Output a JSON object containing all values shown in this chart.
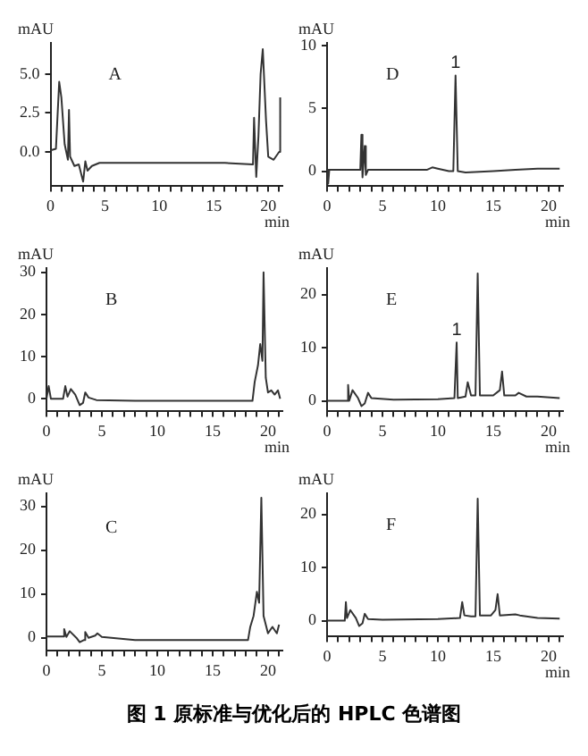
{
  "chart_data": [
    {
      "type": "line",
      "title": "图 1  原标准与优化后的 HPLC 色谱图",
      "ylabel": "mAU",
      "xlabel": "min",
      "annotations": [
        "A"
      ],
      "xlim": [
        0,
        21.3
      ],
      "ylim": [
        -2.2,
        7
      ],
      "yticks": [
        {
          "value": 0,
          "label": "0.0"
        },
        {
          "value": 2.5,
          "label": "2.5"
        },
        {
          "value": 5,
          "label": "5.0"
        }
      ],
      "xticks": [
        0,
        {
          "value": 1,
          "label": null
        },
        {
          "value": 2,
          "label": null
        },
        {
          "value": 3,
          "label": null
        },
        {
          "value": 4,
          "label": null
        },
        5,
        {
          "value": 6,
          "label": null
        },
        {
          "value": 7,
          "label": null
        },
        {
          "value": 8,
          "label": null
        },
        {
          "value": 9,
          "label": null
        },
        10,
        {
          "value": 11,
          "label": null
        },
        {
          "value": 12,
          "label": null
        },
        {
          "value": 13,
          "label": null
        },
        {
          "value": 14,
          "label": null
        },
        15,
        {
          "value": 16,
          "label": null
        },
        {
          "value": 17,
          "label": null
        },
        {
          "value": 18,
          "label": null
        },
        {
          "value": 19,
          "label": null
        },
        20,
        {
          "value": 21,
          "label": null
        }
      ],
      "x": [
        0,
        0.5,
        0.8,
        1.0,
        1.3,
        1.6,
        1.7,
        1.8,
        2.2,
        2.6,
        3.0,
        3.2,
        3.4,
        3.8,
        4.5,
        8,
        12,
        16,
        18.6,
        18.7,
        18.9,
        19.1,
        19.3,
        19.5,
        19.8,
        20.0,
        20.5,
        21,
        21.1
      ],
      "series": [
        {
          "color": "#333333",
          "values": [
            0.1,
            0.2,
            4.5,
            3.5,
            0.5,
            -0.5,
            2.7,
            -0.3,
            -0.9,
            -0.8,
            -1.9,
            -0.6,
            -1.2,
            -0.9,
            -0.7,
            -0.7,
            -0.7,
            -0.7,
            -0.8,
            2.2,
            -1.6,
            1.0,
            5.0,
            6.6,
            2.0,
            -0.3,
            -0.5,
            0,
            3.5
          ]
        }
      ]
    },
    {
      "type": "line",
      "ylabel": "mAU",
      "xlabel": "min",
      "annotations": [
        "D",
        {
          "text": "1",
          "x": 11.6,
          "y": 7.6
        }
      ],
      "xlim": [
        0,
        21.3
      ],
      "ylim": [
        -1.2,
        10.2
      ],
      "yticks": [
        0,
        5,
        10
      ],
      "xticks": [
        0,
        {
          "value": 1,
          "label": null
        },
        {
          "value": 2,
          "label": null
        },
        {
          "value": 3,
          "label": null
        },
        {
          "value": 4,
          "label": null
        },
        5,
        {
          "value": 6,
          "label": null
        },
        {
          "value": 7,
          "label": null
        },
        {
          "value": 8,
          "label": null
        },
        {
          "value": 9,
          "label": null
        },
        10,
        {
          "value": 11,
          "label": null
        },
        {
          "value": 12,
          "label": null
        },
        {
          "value": 13,
          "label": null
        },
        {
          "value": 14,
          "label": null
        },
        15,
        {
          "value": 16,
          "label": null
        },
        {
          "value": 17,
          "label": null
        },
        {
          "value": 18,
          "label": null
        },
        {
          "value": 19,
          "label": null
        },
        20,
        {
          "value": 21,
          "label": null
        }
      ],
      "x": [
        0,
        0.1,
        0.2,
        3,
        3.1,
        3.2,
        3.4,
        3.5,
        3.7,
        9,
        9.5,
        10,
        11,
        11.4,
        11.6,
        11.8,
        12.5,
        15,
        17,
        19,
        21
      ],
      "series": [
        {
          "color": "#333333",
          "values": [
            0.1,
            -1.0,
            0.1,
            0.1,
            2.9,
            -0.5,
            2.0,
            -0.3,
            0.1,
            0.1,
            0.3,
            0.2,
            0,
            0,
            7.6,
            0,
            -0.1,
            0,
            0.1,
            0.2,
            0.2
          ]
        }
      ]
    },
    {
      "type": "line",
      "ylabel": "mAU",
      "xlabel": "min",
      "annotations": [
        "B"
      ],
      "xlim": [
        0,
        21.3
      ],
      "ylim": [
        -3,
        31
      ],
      "yticks": [
        0,
        10,
        20,
        30
      ],
      "xticks": [
        0,
        {
          "value": 1,
          "label": null
        },
        {
          "value": 2,
          "label": null
        },
        {
          "value": 3,
          "label": null
        },
        {
          "value": 4,
          "label": null
        },
        5,
        {
          "value": 6,
          "label": null
        },
        {
          "value": 7,
          "label": null
        },
        {
          "value": 8,
          "label": null
        },
        {
          "value": 9,
          "label": null
        },
        10,
        {
          "value": 11,
          "label": null
        },
        {
          "value": 12,
          "label": null
        },
        {
          "value": 13,
          "label": null
        },
        {
          "value": 14,
          "label": null
        },
        15,
        {
          "value": 16,
          "label": null
        },
        {
          "value": 17,
          "label": null
        },
        {
          "value": 18,
          "label": null
        },
        {
          "value": 19,
          "label": null
        },
        20,
        {
          "value": 21,
          "label": null
        }
      ],
      "x": [
        0,
        0.2,
        0.4,
        1.5,
        1.7,
        1.9,
        2.2,
        2.6,
        3,
        3.3,
        3.5,
        3.8,
        4.5,
        8,
        15,
        18.6,
        18.8,
        19.1,
        19.3,
        19.5,
        19.6,
        19.8,
        20,
        20.3,
        20.6,
        20.9,
        21.1
      ],
      "series": [
        {
          "color": "#333333",
          "values": [
            0,
            3,
            0,
            0,
            3,
            0.5,
            2.3,
            1,
            -1.5,
            -1,
            1.5,
            0.3,
            -0.3,
            -0.5,
            -0.5,
            -0.5,
            4,
            8,
            13,
            9,
            30,
            5,
            1.5,
            2,
            1,
            2,
            0
          ]
        }
      ]
    },
    {
      "type": "line",
      "ylabel": "mAU",
      "xlabel": "min",
      "annotations": [
        "E",
        {
          "text": "1",
          "x": 11.7,
          "y": 11
        }
      ],
      "xlim": [
        0,
        21.3
      ],
      "ylim": [
        -2,
        25
      ],
      "yticks": [
        0,
        10,
        20
      ],
      "xticks": [
        0,
        {
          "value": 1,
          "label": null
        },
        {
          "value": 2,
          "label": null
        },
        {
          "value": 3,
          "label": null
        },
        {
          "value": 4,
          "label": null
        },
        5,
        {
          "value": 6,
          "label": null
        },
        {
          "value": 7,
          "label": null
        },
        {
          "value": 8,
          "label": null
        },
        {
          "value": 9,
          "label": null
        },
        10,
        {
          "value": 11,
          "label": null
        },
        {
          "value": 12,
          "label": null
        },
        {
          "value": 13,
          "label": null
        },
        {
          "value": 14,
          "label": null
        },
        15,
        {
          "value": 16,
          "label": null
        },
        {
          "value": 17,
          "label": null
        },
        {
          "value": 18,
          "label": null
        },
        {
          "value": 19,
          "label": null
        },
        20,
        {
          "value": 21,
          "label": null
        }
      ],
      "x": [
        0,
        1.8,
        1.9,
        2.0,
        2.3,
        2.8,
        3.1,
        3.4,
        3.7,
        4.0,
        6,
        10,
        11.5,
        11.7,
        11.8,
        12.5,
        12.7,
        13,
        13.4,
        13.6,
        13.8,
        15,
        15.6,
        15.8,
        16,
        17,
        17.3,
        18,
        19,
        21
      ],
      "series": [
        {
          "color": "#333333",
          "values": [
            0,
            0,
            3,
            0,
            2,
            0.5,
            -1,
            -0.5,
            1.5,
            0.5,
            0.2,
            0.3,
            0.5,
            11,
            0.5,
            0.8,
            3.5,
            1,
            1,
            24,
            1,
            1,
            2,
            5.5,
            1,
            1,
            1.5,
            0.8,
            0.8,
            0.5
          ]
        }
      ]
    },
    {
      "type": "line",
      "ylabel": "mAU",
      "annotations": [
        "C"
      ],
      "xlim": [
        0,
        21.3
      ],
      "ylim": [
        -3,
        33
      ],
      "yticks": [
        0,
        10,
        20,
        30
      ],
      "xticks": [
        0,
        {
          "value": 1,
          "label": null
        },
        {
          "value": 2,
          "label": null
        },
        {
          "value": 3,
          "label": null
        },
        {
          "value": 4,
          "label": null
        },
        5,
        {
          "value": 6,
          "label": null
        },
        {
          "value": 7,
          "label": null
        },
        {
          "value": 8,
          "label": null
        },
        {
          "value": 9,
          "label": null
        },
        10,
        {
          "value": 11,
          "label": null
        },
        {
          "value": 12,
          "label": null
        },
        {
          "value": 13,
          "label": null
        },
        {
          "value": 14,
          "label": null
        },
        15,
        {
          "value": 16,
          "label": null
        },
        {
          "value": 17,
          "label": null
        },
        {
          "value": 18,
          "label": null
        },
        {
          "value": 19,
          "label": null
        },
        20,
        {
          "value": 21,
          "label": null
        }
      ],
      "x": [
        0,
        1.5,
        1.6,
        1.8,
        2.1,
        2.7,
        3,
        3.4,
        3.5,
        3.8,
        4.4,
        4.6,
        5,
        8,
        15,
        18.2,
        18.4,
        18.7,
        19,
        19.2,
        19.4,
        19.6,
        20,
        20.4,
        20.8,
        21
      ],
      "series": [
        {
          "color": "#333333",
          "values": [
            0.3,
            0.3,
            2,
            0.2,
            1.5,
            0,
            -1,
            -0.5,
            1.3,
            0,
            0.5,
            1,
            0.2,
            -0.5,
            -0.5,
            -0.5,
            2.5,
            5,
            10.5,
            8,
            32,
            5,
            1,
            2.5,
            1,
            3
          ]
        }
      ]
    },
    {
      "type": "line",
      "ylabel": "mAU",
      "xlabel": "min",
      "annotations": [
        "F"
      ],
      "xlim": [
        0,
        21.3
      ],
      "ylim": [
        -3,
        24
      ],
      "yticks": [
        0,
        10,
        20
      ],
      "xticks": [
        0,
        {
          "value": 1,
          "label": null
        },
        {
          "value": 2,
          "label": null
        },
        {
          "value": 3,
          "label": null
        },
        {
          "value": 4,
          "label": null
        },
        5,
        {
          "value": 6,
          "label": null
        },
        {
          "value": 7,
          "label": null
        },
        {
          "value": 8,
          "label": null
        },
        {
          "value": 9,
          "label": null
        },
        10,
        {
          "value": 11,
          "label": null
        },
        {
          "value": 12,
          "label": null
        },
        {
          "value": 13,
          "label": null
        },
        {
          "value": 14,
          "label": null
        },
        15,
        {
          "value": 16,
          "label": null
        },
        {
          "value": 17,
          "label": null
        },
        {
          "value": 18,
          "label": null
        },
        {
          "value": 19,
          "label": null
        },
        20,
        {
          "value": 21,
          "label": null
        }
      ],
      "x": [
        0,
        1.6,
        1.7,
        1.8,
        2.1,
        2.6,
        2.9,
        3.2,
        3.4,
        3.7,
        5,
        10,
        12,
        12.2,
        12.4,
        13,
        13.4,
        13.6,
        13.8,
        14.8,
        15.2,
        15.4,
        15.6,
        17,
        17.4,
        19,
        21
      ],
      "series": [
        {
          "color": "#333333",
          "values": [
            0,
            0,
            3.5,
            0.5,
            2,
            0.5,
            -1,
            -0.5,
            1.3,
            0.3,
            0.2,
            0.3,
            0.5,
            3.5,
            1,
            0.8,
            0.8,
            23,
            1,
            1,
            2,
            5,
            1,
            1.2,
            1,
            0.5,
            0.4
          ]
        }
      ]
    }
  ]
}
